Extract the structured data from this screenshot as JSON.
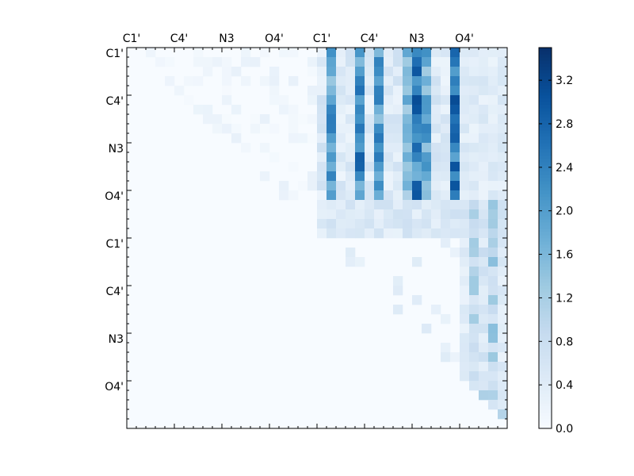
{
  "chart_data": {
    "type": "heatmap",
    "n_rows": 40,
    "n_cols": 40,
    "x_tick_labels": [
      "C1'",
      "C4'",
      "N3",
      "O4'",
      "C1'",
      "C4'",
      "N3",
      "O4'"
    ],
    "y_tick_labels": [
      "C1'",
      "C4'",
      "N3",
      "O4'",
      "C1'",
      "C4'",
      "N3",
      "O4'"
    ],
    "label_every": 5,
    "colorbar": {
      "min": 0.0,
      "max": 3.5,
      "ticks": [
        0.0,
        0.4,
        0.8,
        1.2,
        1.6,
        2.0,
        2.4,
        2.8,
        3.2
      ],
      "tick_labels": [
        "0.0",
        "0.4",
        "0.8",
        "1.2",
        "1.6",
        "2.0",
        "2.4",
        "2.8",
        "3.2"
      ],
      "colormap": "Blues"
    },
    "matrix_structure": "upper-triangular (values above diagonal; zeros below)",
    "hot_columns": [
      {
        "col": 21,
        "value": 2.4
      },
      {
        "col": 24,
        "value": 2.8
      },
      {
        "col": 26,
        "value": 2.5
      },
      {
        "col": 29,
        "value": 2.0
      },
      {
        "col": 30,
        "value": 3.0
      },
      {
        "col": 31,
        "value": 2.3
      },
      {
        "col": 34,
        "value": 3.3
      }
    ],
    "lower_right_hot_columns": [
      {
        "col": 36,
        "value": 1.2
      },
      {
        "col": 37,
        "value": 0.8
      },
      {
        "col": 38,
        "value": 1.4
      }
    ]
  }
}
